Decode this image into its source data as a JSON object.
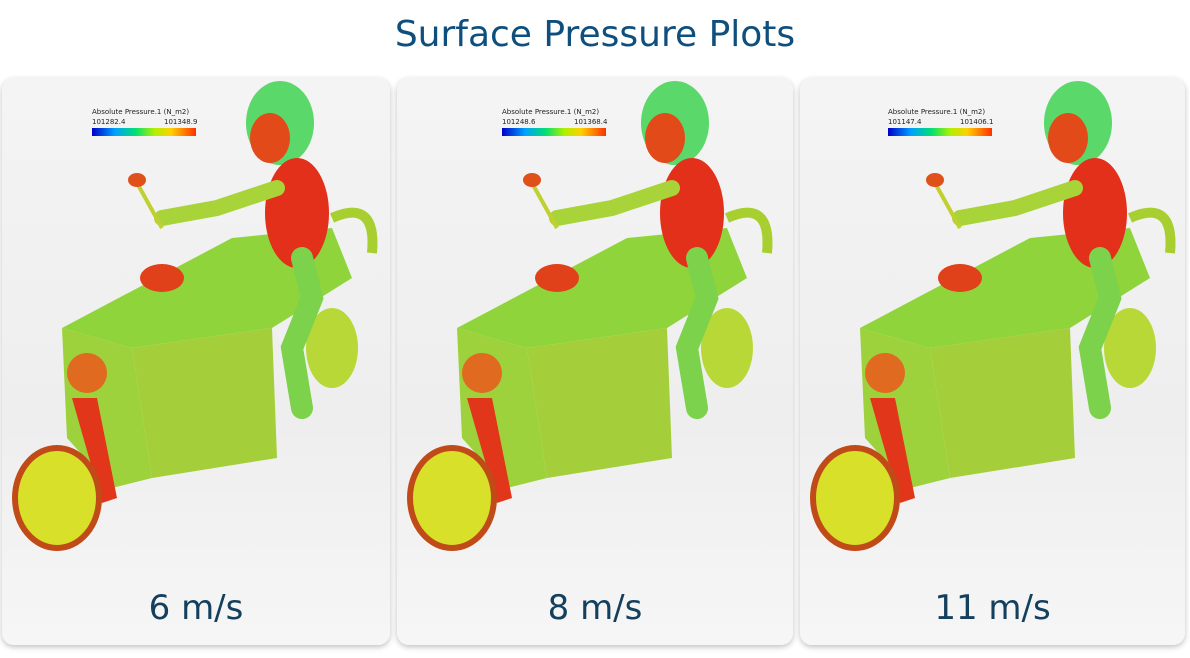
{
  "header": {
    "title": "Surface Pressure Plots"
  },
  "panels": [
    {
      "legend_title": "Absolute Pressure.1 (N_m2)",
      "min": "101282.4",
      "max": "101348.9",
      "label": "6 m/s"
    },
    {
      "legend_title": "Absolute Pressure.1 (N_m2)",
      "min": "101248.6",
      "max": "101368.4",
      "label": "8 m/s"
    },
    {
      "legend_title": "Absolute Pressure.1 (N_m2)",
      "min": "101147.4",
      "max": "101406.1",
      "label": "11 m/s"
    }
  ]
}
